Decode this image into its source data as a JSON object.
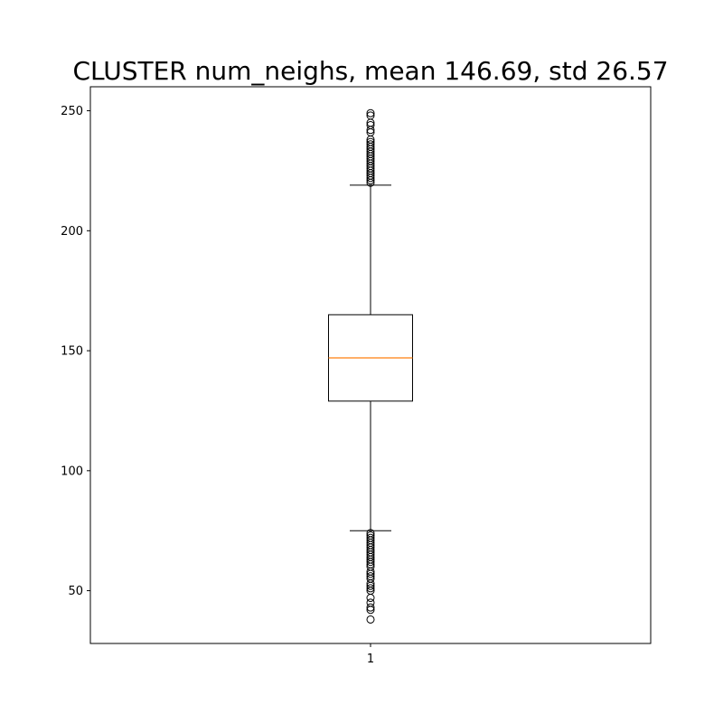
{
  "chart_data": {
    "type": "box",
    "title": "CLUSTER num_neighs, mean 146.69, std 26.57",
    "xlabel": "",
    "ylabel": "",
    "categories": [
      "1"
    ],
    "ylim": [
      28,
      260
    ],
    "yticks": [
      50,
      100,
      150,
      200,
      250
    ],
    "grid": false,
    "boxes": [
      {
        "category": "1",
        "whisker_low": 75,
        "q1": 129,
        "median": 147,
        "q3": 165,
        "whisker_high": 219,
        "outliers_high": [
          220,
          221,
          222,
          223,
          224,
          225,
          226,
          227,
          228,
          229,
          230,
          231,
          232,
          233,
          234,
          235,
          236,
          237,
          238,
          241,
          242,
          244,
          245,
          248,
          249
        ],
        "outliers_low": [
          74,
          73,
          72,
          71,
          70,
          69,
          68,
          67,
          66,
          65,
          64,
          63,
          62,
          61,
          60,
          58,
          57,
          56,
          55,
          53,
          52,
          51,
          50,
          47,
          45,
          43,
          42,
          38
        ]
      }
    ],
    "colors": {
      "box": "#000000",
      "median": "#ff7f0e"
    }
  }
}
